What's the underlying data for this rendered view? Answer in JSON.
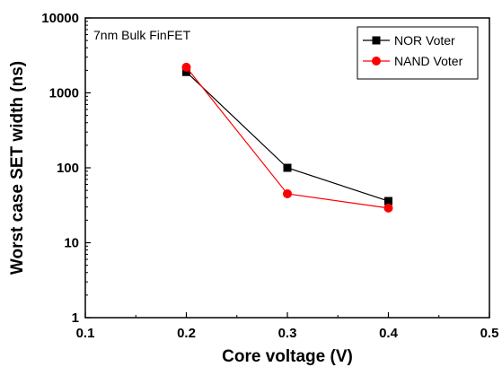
{
  "chart_data": {
    "type": "line",
    "title": "",
    "xlabel": "Core voltage (V)",
    "ylabel": "Worst case SET width (ns)",
    "xlim": [
      0.1,
      0.5
    ],
    "ylim": [
      1,
      10000
    ],
    "yscale": "log",
    "x_ticks": [
      "0.1",
      "0.2",
      "0.3",
      "0.4",
      "0.5"
    ],
    "y_ticks": [
      "1",
      "10",
      "100",
      "1000",
      "10000"
    ],
    "annotation": "7nm Bulk FinFET",
    "legend_position": "top-right",
    "grid": false,
    "series": [
      {
        "name": "NOR Voter",
        "color": "#000000",
        "marker": "square",
        "x": [
          0.2,
          0.3,
          0.4
        ],
        "y": [
          1900,
          100,
          36
        ]
      },
      {
        "name": "NAND Voter",
        "color": "#ff0000",
        "marker": "circle",
        "x": [
          0.2,
          0.3,
          0.4
        ],
        "y": [
          2200,
          45,
          29
        ]
      }
    ]
  }
}
